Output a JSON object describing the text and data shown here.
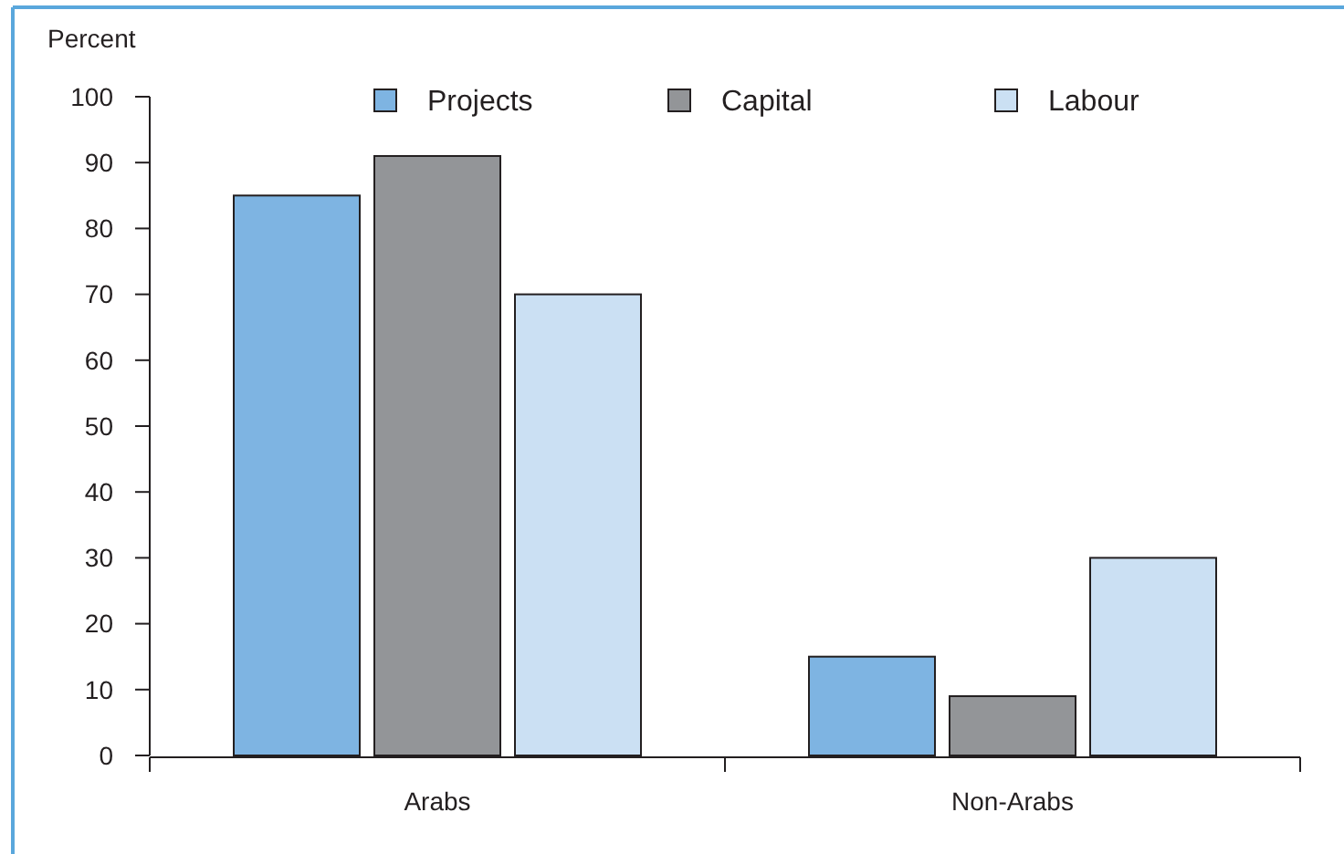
{
  "chart_data": {
    "type": "bar",
    "ylabel": "Percent",
    "categories": [
      "Arabs",
      "Non-Arabs"
    ],
    "series": [
      {
        "name": "Projects",
        "color": "#7eb4e2",
        "values": [
          85,
          15
        ]
      },
      {
        "name": "Capital",
        "color": "#939598",
        "values": [
          91,
          9
        ]
      },
      {
        "name": "Labour",
        "color": "#cbe0f3",
        "values": [
          70,
          30
        ]
      }
    ],
    "ylim": [
      0,
      100
    ],
    "yticks": [
      0,
      10,
      20,
      30,
      40,
      50,
      60,
      70,
      80,
      90,
      100
    ],
    "grid": false,
    "legend": "top"
  }
}
